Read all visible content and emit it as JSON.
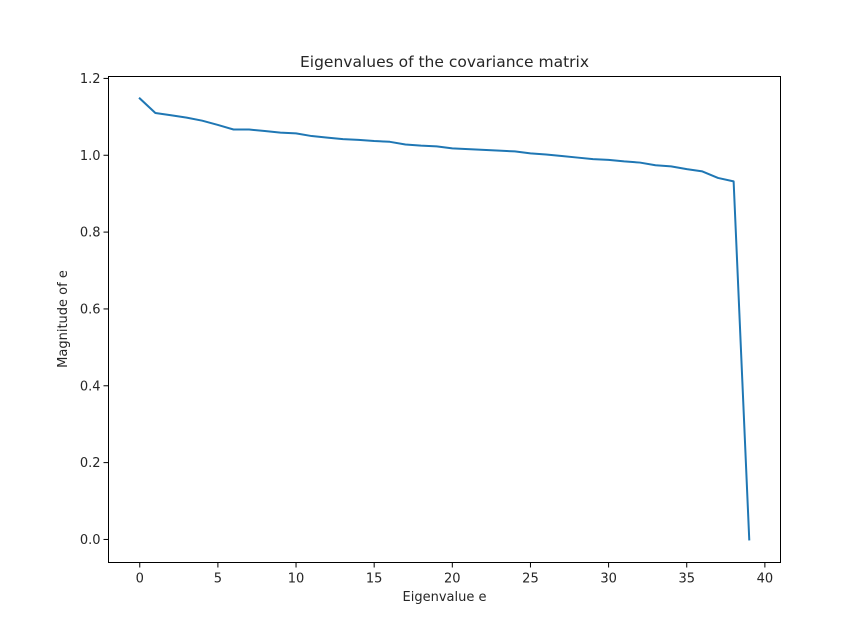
{
  "chart_data": {
    "type": "line",
    "title": "Eigenvalues of the covariance matrix",
    "xlabel": "Eigenvalue e",
    "ylabel": "Magnitude of e",
    "xlim": [
      -2,
      41
    ],
    "ylim": [
      -0.06,
      1.205
    ],
    "x_ticks": [
      0,
      5,
      10,
      15,
      20,
      25,
      30,
      35,
      40
    ],
    "y_ticks": [
      0.0,
      0.2,
      0.4,
      0.6,
      0.8,
      1.0,
      1.2
    ],
    "grid": false,
    "series": [
      {
        "color": "#1f77b4",
        "x": [
          0,
          1,
          2,
          3,
          4,
          5,
          6,
          7,
          8,
          9,
          10,
          11,
          12,
          13,
          14,
          15,
          16,
          17,
          18,
          19,
          20,
          21,
          22,
          23,
          24,
          25,
          26,
          27,
          28,
          29,
          30,
          31,
          32,
          33,
          34,
          35,
          36,
          37,
          38,
          39
        ],
        "values": [
          1.148,
          1.11,
          1.104,
          1.098,
          1.09,
          1.079,
          1.067,
          1.067,
          1.063,
          1.059,
          1.057,
          1.05,
          1.046,
          1.042,
          1.04,
          1.037,
          1.035,
          1.028,
          1.025,
          1.023,
          1.018,
          1.016,
          1.014,
          1.012,
          1.01,
          1.005,
          1.002,
          0.998,
          0.994,
          0.99,
          0.988,
          0.984,
          0.981,
          0.974,
          0.971,
          0.964,
          0.958,
          0.941,
          0.932,
          0.0
        ]
      }
    ]
  }
}
